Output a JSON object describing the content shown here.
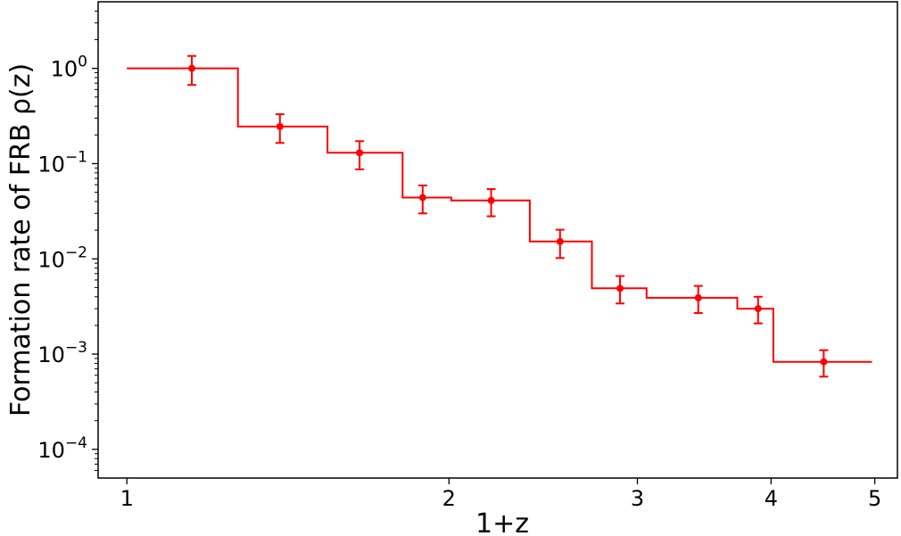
{
  "chart_data": {
    "type": "line",
    "xlabel": "1+z",
    "ylabel": "Formation rate of FRB ρ(z)",
    "x_scale": "log",
    "y_scale": "log",
    "xlim": [
      0.94,
      5.25
    ],
    "ylim": [
      5e-05,
      5
    ],
    "x_ticks": [
      {
        "value": 1,
        "label": "1"
      },
      {
        "value": 2,
        "label": "2"
      },
      {
        "value": 3,
        "label": "3"
      },
      {
        "value": 4,
        "label": "4"
      },
      {
        "value": 5,
        "label": "5"
      }
    ],
    "y_ticks": [
      {
        "value": 1,
        "base": "10",
        "exp": "0"
      },
      {
        "value": 0.1,
        "base": "10",
        "exp": "−1"
      },
      {
        "value": 0.01,
        "base": "10",
        "exp": "−2"
      },
      {
        "value": 0.001,
        "base": "10",
        "exp": "−3"
      },
      {
        "value": 0.0001,
        "base": "10",
        "exp": "−4"
      }
    ],
    "color": "#ff0000",
    "series": [
      {
        "kind": "step",
        "edges": [
          1.0,
          1.27,
          1.54,
          1.81,
          2.01,
          2.38,
          2.72,
          3.06,
          3.72,
          4.02,
          4.97
        ],
        "values": [
          1.0,
          0.245,
          0.13,
          0.044,
          0.041,
          0.0152,
          0.0049,
          0.0039,
          0.003,
          0.00083
        ]
      },
      {
        "kind": "errorbar",
        "x": [
          1.15,
          1.39,
          1.65,
          1.89,
          2.19,
          2.54,
          2.89,
          3.42,
          3.89,
          4.48
        ],
        "y": [
          1.0,
          0.245,
          0.13,
          0.044,
          0.041,
          0.0152,
          0.0049,
          0.0039,
          0.003,
          0.00083
        ],
        "y_low": [
          0.67,
          0.165,
          0.087,
          0.03,
          0.028,
          0.0102,
          0.0034,
          0.0027,
          0.0021,
          0.00058
        ],
        "y_high": [
          1.35,
          0.33,
          0.172,
          0.059,
          0.054,
          0.0202,
          0.0066,
          0.0052,
          0.004,
          0.0011
        ]
      }
    ]
  }
}
